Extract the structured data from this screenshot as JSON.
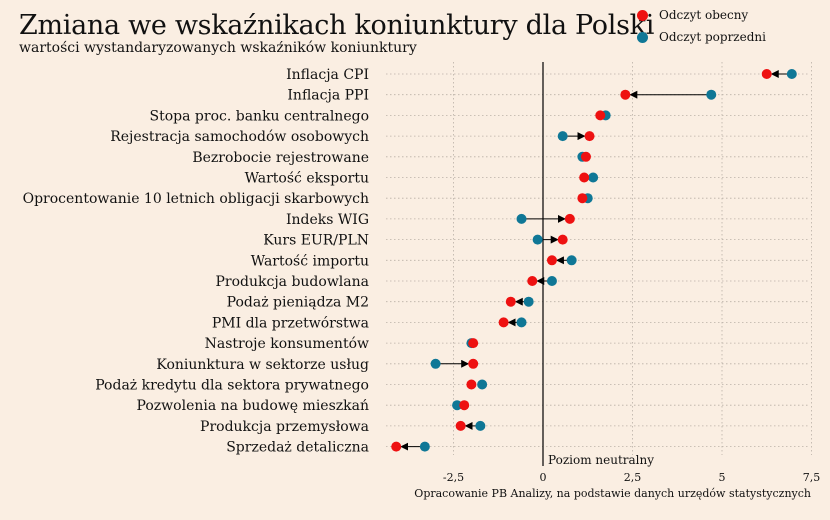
{
  "title": "Zmiana we wskaźnikach koniunktury dla Polski",
  "subtitle": "wartości wystandaryzowanych wskaźników koniunktury",
  "source": "Opracowanie PB Analizy, na podstawie danych urzędów statystycznych",
  "neutral_label": "Poziom neutralny",
  "colors": {
    "current": "#ee1111",
    "previous": "#0f7796",
    "arrow": "#000000",
    "background": "#faeee2"
  },
  "legend": [
    {
      "label": "Odczyt obecny",
      "key": "current"
    },
    {
      "label": "Odczyt poprzedni",
      "key": "previous"
    }
  ],
  "chart_data": {
    "type": "scatter",
    "xlim": [
      -4.2,
      7.5
    ],
    "xticks": [
      -2.5,
      0,
      2.5,
      5,
      7.5
    ],
    "xtick_labels": [
      "-2,5",
      "0",
      "2,5",
      "5",
      "7,5"
    ],
    "grid": true,
    "legend_position": "top-right",
    "series": [
      {
        "name": "Odczyt obecny",
        "key": "current"
      },
      {
        "name": "Odczyt poprzedni",
        "key": "previous"
      }
    ],
    "categories": [
      "Inflacja CPI",
      "Inflacja PPI",
      "Stopa proc. banku centralnego",
      "Rejestracja samochodów osobowych",
      "Bezrobocie rejestrowane",
      "Wartość eksportu",
      "Oprocentowanie 10 letnich obligacji skarbowych",
      "Indeks WIG",
      "Kurs EUR/PLN",
      "Wartość importu",
      "Produkcja budowlana",
      "Podaż pieniądza M2",
      "PMI dla przetwórstwa",
      "Nastroje konsumentów",
      "Koniunktura w sektorze usług",
      "Podaż kredytu dla sektora prywatnego",
      "Pozwolenia na budowę mieszkań",
      "Produkcja przemysłowa",
      "Sprzedaż detaliczna"
    ],
    "current": [
      6.25,
      2.3,
      1.6,
      1.3,
      1.2,
      1.15,
      1.1,
      0.75,
      0.55,
      0.25,
      -0.3,
      -0.9,
      -1.1,
      -1.95,
      -1.95,
      -2.0,
      -2.2,
      -2.3,
      -4.1
    ],
    "previous": [
      6.95,
      4.7,
      1.75,
      0.55,
      1.1,
      1.4,
      1.25,
      -0.6,
      -0.15,
      0.8,
      0.25,
      -0.4,
      -0.6,
      -2.0,
      -3.0,
      -1.7,
      -2.4,
      -1.75,
      -3.3
    ]
  }
}
